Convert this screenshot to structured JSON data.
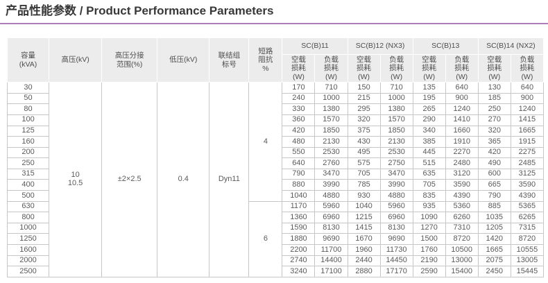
{
  "title": "产品性能参数 / Product Performance Parameters",
  "accent_color": "#ab80ba",
  "table": {
    "left_headers": [
      "容量\n(kVA)",
      "高压(kV)",
      "高压分接\n范围(%)",
      "低压(kV)",
      "联结组\n标号",
      "短路\n阻抗\n%"
    ],
    "groups": [
      "SC(B)11",
      "SC(B)12 (NX3)",
      "SC(B)13",
      "SC(B)14 (NX2)"
    ],
    "sub_headers": [
      "空载\n损耗\n(W)",
      "负载\n损耗\n(W)"
    ],
    "merged": {
      "hv_voltage": "10\n10.5",
      "tap_range": "±2×2.5",
      "lv_voltage": "0.4",
      "vector_group": "Dyn11"
    },
    "impedance_groups": [
      {
        "label": "4",
        "span": 11
      },
      {
        "label": "6",
        "span": 7
      }
    ],
    "rows": [
      {
        "capacity": "30",
        "values": [
          "170",
          "710",
          "150",
          "710",
          "135",
          "640",
          "130",
          "640"
        ]
      },
      {
        "capacity": "50",
        "values": [
          "240",
          "1000",
          "215",
          "1000",
          "195",
          "900",
          "185",
          "900"
        ]
      },
      {
        "capacity": "80",
        "values": [
          "330",
          "1380",
          "295",
          "1380",
          "265",
          "1240",
          "250",
          "1240"
        ]
      },
      {
        "capacity": "100",
        "values": [
          "360",
          "1570",
          "320",
          "1570",
          "290",
          "1410",
          "270",
          "1415"
        ]
      },
      {
        "capacity": "125",
        "values": [
          "420",
          "1850",
          "375",
          "1850",
          "340",
          "1660",
          "320",
          "1665"
        ]
      },
      {
        "capacity": "160",
        "values": [
          "480",
          "2130",
          "430",
          "2130",
          "385",
          "1910",
          "365",
          "1915"
        ]
      },
      {
        "capacity": "200",
        "values": [
          "550",
          "2530",
          "495",
          "2530",
          "445",
          "2270",
          "420",
          "2275"
        ]
      },
      {
        "capacity": "250",
        "values": [
          "640",
          "2760",
          "575",
          "2750",
          "515",
          "2480",
          "490",
          "2485"
        ]
      },
      {
        "capacity": "315",
        "values": [
          "790",
          "3470",
          "705",
          "3470",
          "635",
          "3120",
          "600",
          "3125"
        ]
      },
      {
        "capacity": "400",
        "values": [
          "880",
          "3990",
          "785",
          "3990",
          "705",
          "3590",
          "665",
          "3590"
        ]
      },
      {
        "capacity": "500",
        "values": [
          "1040",
          "4880",
          "930",
          "4880",
          "835",
          "4390",
          "790",
          "4390"
        ]
      },
      {
        "capacity": "630",
        "values": [
          "1170",
          "5960",
          "1040",
          "5960",
          "935",
          "5360",
          "885",
          "5365"
        ]
      },
      {
        "capacity": "800",
        "values": [
          "1360",
          "6960",
          "1215",
          "6960",
          "1090",
          "6260",
          "1035",
          "6265"
        ]
      },
      {
        "capacity": "1000",
        "values": [
          "1590",
          "8130",
          "1415",
          "8130",
          "1270",
          "7310",
          "1205",
          "7315"
        ]
      },
      {
        "capacity": "1250",
        "values": [
          "1880",
          "9690",
          "1670",
          "9690",
          "1500",
          "8720",
          "1420",
          "8720"
        ]
      },
      {
        "capacity": "1600",
        "values": [
          "2200",
          "11700",
          "1960",
          "11730",
          "1760",
          "10500",
          "1665",
          "10555"
        ]
      },
      {
        "capacity": "2000",
        "values": [
          "2740",
          "14400",
          "2440",
          "14450",
          "2190",
          "13000",
          "2075",
          "13005"
        ]
      },
      {
        "capacity": "2500",
        "values": [
          "3240",
          "17100",
          "2880",
          "17170",
          "2590",
          "15400",
          "2450",
          "15445"
        ]
      }
    ]
  }
}
